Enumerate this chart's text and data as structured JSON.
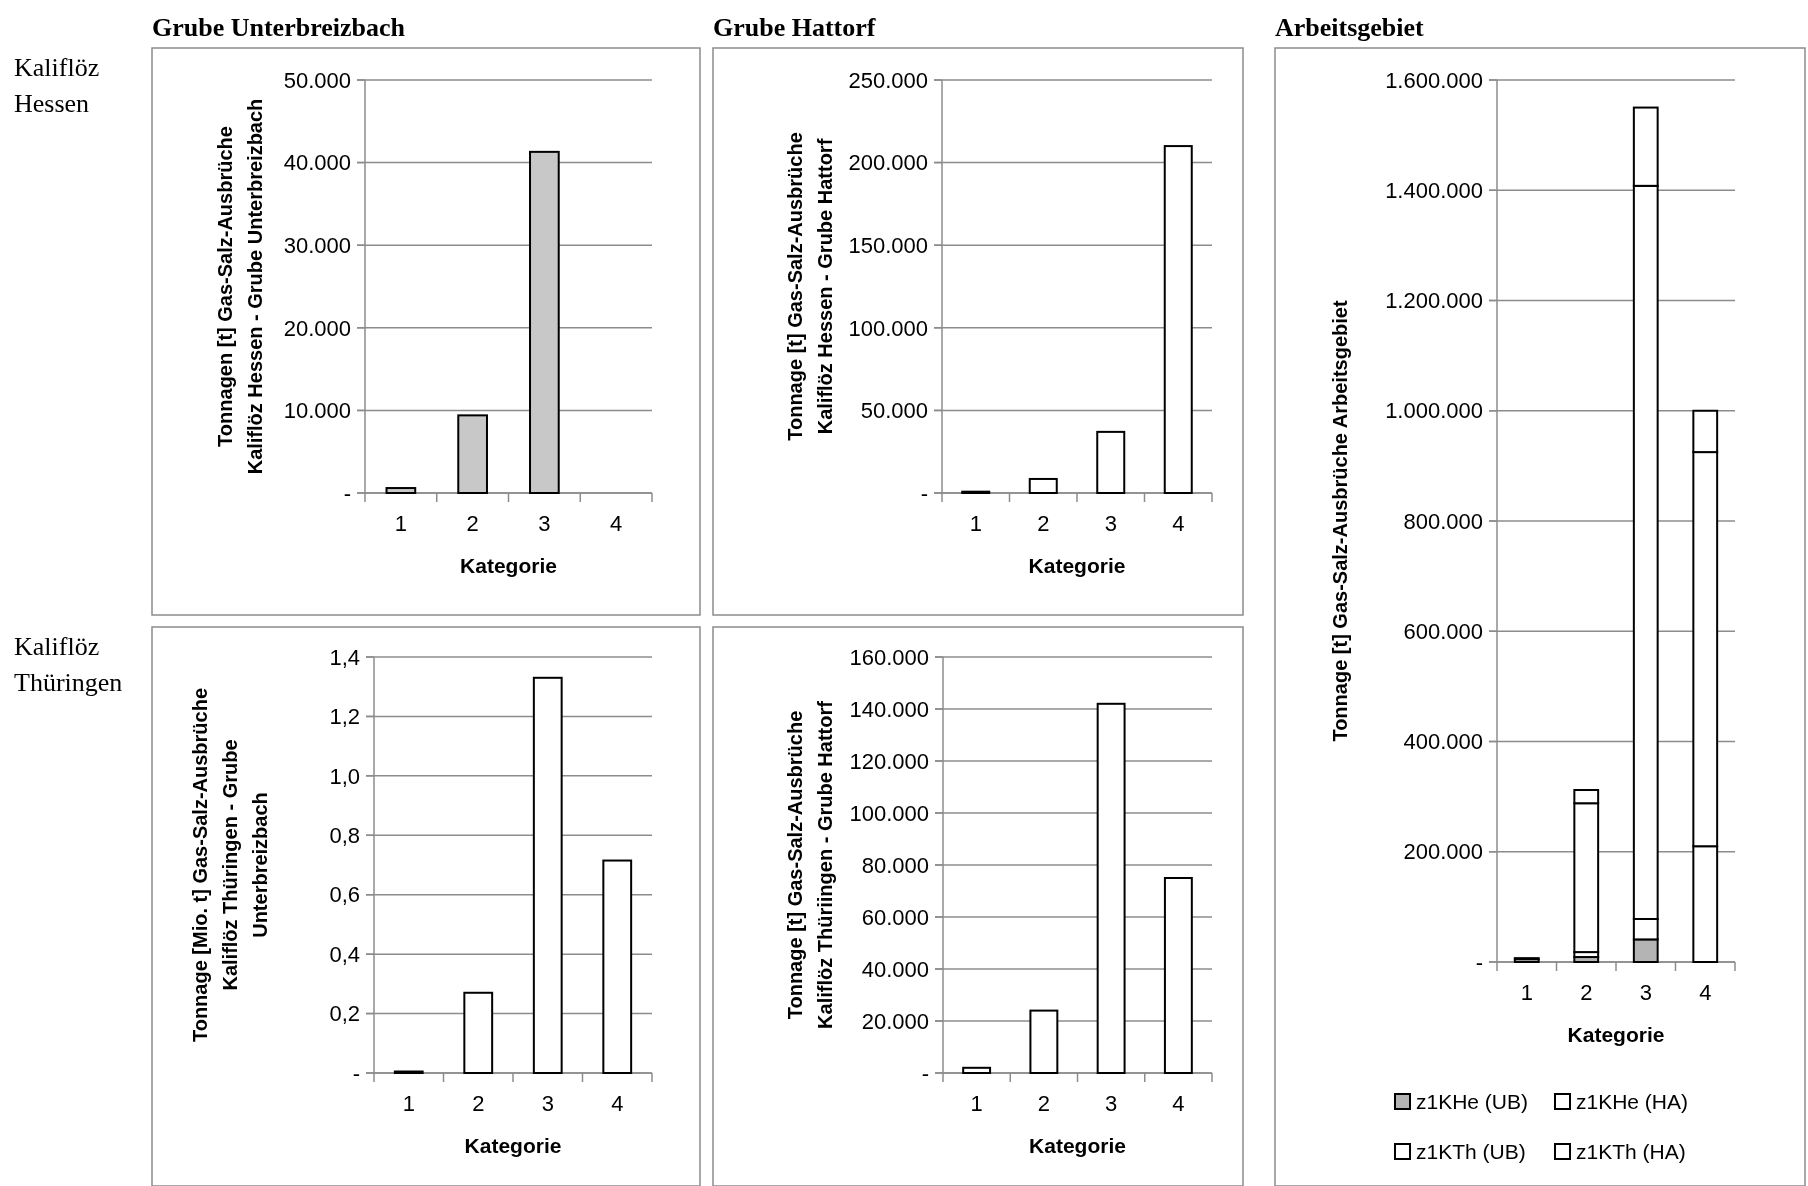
{
  "chart_data": [
    {
      "type": "bar",
      "title": "Grube Unterbreizbach",
      "ylabel": "Tonnagen [t] Gas-Salz-Ausbrüche Kaliflöz Hessen - Grube Unterbreizbach",
      "xlabel": "Kategorie",
      "annotations": [
        "Kaliflöz Hessen"
      ],
      "categories": [
        "1",
        "2",
        "3",
        "4"
      ],
      "values": [
        600,
        9400,
        41300,
        null
      ],
      "color": "#c8c8c8",
      "ylim": [
        0,
        50000
      ],
      "yticks": [
        {
          "value": 0,
          "label": "-"
        },
        {
          "value": 10000,
          "label": "10.000"
        },
        {
          "value": 20000,
          "label": "20.000"
        },
        {
          "value": 30000,
          "label": "30.000"
        },
        {
          "value": 40000,
          "label": "40.000"
        },
        {
          "value": 50000,
          "label": "50.000"
        }
      ],
      "grid": "y"
    },
    {
      "type": "bar",
      "title": "Grube Hattorf",
      "ylabel": "Tonnage [t] Gas-Salz-Ausbrüche Kaliflöz Hessen - Grube Hattorf",
      "xlabel": "Kategorie",
      "categories": [
        "1",
        "2",
        "3",
        "4"
      ],
      "values": [
        800,
        8500,
        37000,
        210000
      ],
      "color": "#ffffff",
      "ylim": [
        0,
        250000
      ],
      "yticks": [
        {
          "value": 0,
          "label": "-"
        },
        {
          "value": 50000,
          "label": "50.000"
        },
        {
          "value": 100000,
          "label": "100.000"
        },
        {
          "value": 150000,
          "label": "150.000"
        },
        {
          "value": 200000,
          "label": "200.000"
        },
        {
          "value": 250000,
          "label": "250.000"
        }
      ],
      "grid": "y"
    },
    {
      "type": "bar",
      "ylabel": "Tonnage [Mio. t] Gas-Salz-Ausbrüche Kaliflöz Thüringen - Grube Unterbreizbach",
      "xlabel": "Kategorie",
      "annotations": [
        "Kaliflöz Thüringen"
      ],
      "categories": [
        "1",
        "2",
        "3",
        "4"
      ],
      "values": [
        0.005,
        0.27,
        1.33,
        0.715
      ],
      "color": "#ffffff",
      "ylim": [
        0,
        1.4
      ],
      "yticks": [
        {
          "value": 0,
          "label": "-"
        },
        {
          "value": 0.2,
          "label": "0,2"
        },
        {
          "value": 0.4,
          "label": "0,4"
        },
        {
          "value": 0.6,
          "label": "0,6"
        },
        {
          "value": 0.8,
          "label": "0,8"
        },
        {
          "value": 1.0,
          "label": "1,0"
        },
        {
          "value": 1.2,
          "label": "1,2"
        },
        {
          "value": 1.4,
          "label": "1,4"
        }
      ],
      "grid": "y"
    },
    {
      "type": "bar",
      "ylabel": "Tonnage [t] Gas-Salz-Ausbrüche Kaliflöz Thüriingen - Grube Hattorf",
      "xlabel": "Kategorie",
      "categories": [
        "1",
        "2",
        "3",
        "4"
      ],
      "values": [
        2000,
        24000,
        142000,
        75000
      ],
      "color": "#ffffff",
      "ylim": [
        0,
        160000
      ],
      "yticks": [
        {
          "value": 0,
          "label": "-"
        },
        {
          "value": 20000,
          "label": "20.000"
        },
        {
          "value": 40000,
          "label": "40.000"
        },
        {
          "value": 60000,
          "label": "60.000"
        },
        {
          "value": 80000,
          "label": "80.000"
        },
        {
          "value": 100000,
          "label": "100.000"
        },
        {
          "value": 120000,
          "label": "120.000"
        },
        {
          "value": 140000,
          "label": "140.000"
        },
        {
          "value": 160000,
          "label": "160.000"
        }
      ],
      "grid": "y"
    },
    {
      "type": "bar",
      "title": "Arbeitsgebiet",
      "ylabel": "Tonnage [t] Gas-Salz-Ausbrüche Arbeitsgebiet",
      "xlabel": "Kategorie",
      "categories": [
        "1",
        "2",
        "3",
        "4"
      ],
      "stacked": true,
      "series": [
        {
          "name": "z1KHe (UB)",
          "color": "#b4b4b4",
          "values": [
            null,
            9000,
            41000,
            null
          ]
        },
        {
          "name": "z1KHe (HA)",
          "color": "#ffffff",
          "values": [
            null,
            9000,
            37000,
            210000
          ]
        },
        {
          "name": "z1KTh (UB)",
          "color": "#ffffff",
          "values": [
            5000,
            270000,
            1330000,
            715000
          ]
        },
        {
          "name": "z1KTh (HA)",
          "color": "#ffffff",
          "values": [
            2000,
            24000,
            142000,
            75000
          ]
        }
      ],
      "ylim": [
        0,
        1600000
      ],
      "yticks": [
        {
          "value": 0,
          "label": "-"
        },
        {
          "value": 200000,
          "label": "200.000"
        },
        {
          "value": 400000,
          "label": "400.000"
        },
        {
          "value": 600000,
          "label": "600.000"
        },
        {
          "value": 800000,
          "label": "800.000"
        },
        {
          "value": 1000000,
          "label": "1.000.000"
        },
        {
          "value": 1200000,
          "label": "1.200.000"
        },
        {
          "value": 1400000,
          "label": "1.400.000"
        },
        {
          "value": 1600000,
          "label": "1.600.000"
        }
      ],
      "grid": "y",
      "legend": "bottom"
    }
  ]
}
